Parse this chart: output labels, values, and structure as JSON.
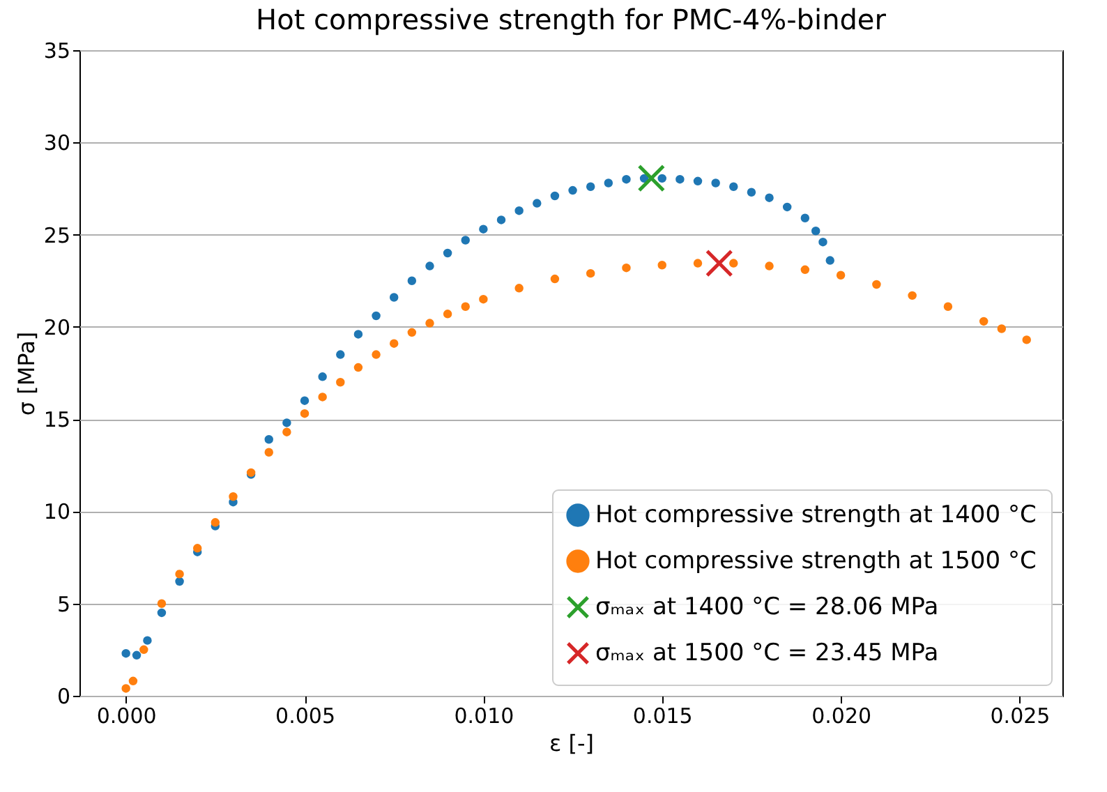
{
  "chart_data": {
    "type": "scatter",
    "title": "Hot compressive strength for PMC-4%-binder",
    "xlabel": "ε [-]",
    "ylabel": "σ [MPa]",
    "xlim": [
      -0.0013,
      0.0262
    ],
    "ylim": [
      0,
      35
    ],
    "xticks": [
      {
        "value": 0,
        "label": "0.000"
      },
      {
        "value": 0.005,
        "label": "0.005"
      },
      {
        "value": 0.01,
        "label": "0.010"
      },
      {
        "value": 0.015,
        "label": "0.015"
      },
      {
        "value": 0.02,
        "label": "0.020"
      },
      {
        "value": 0.025,
        "label": "0.025"
      }
    ],
    "yticks": [
      0,
      5,
      10,
      15,
      20,
      25,
      30,
      35
    ],
    "grid": "y",
    "legend": "bottom right",
    "series": [
      {
        "name": "Hot compressive strength at 1400 °C",
        "color": "#1f77b4",
        "marker": "circle",
        "x": [
          0,
          0.0003,
          0.0006,
          0.001,
          0.0015,
          0.002,
          0.0025,
          0.003,
          0.0035,
          0.004,
          0.0045,
          0.005,
          0.0055,
          0.006,
          0.0065,
          0.007,
          0.0075,
          0.008,
          0.0085,
          0.009,
          0.0095,
          0.01,
          0.0105,
          0.011,
          0.0115,
          0.012,
          0.0125,
          0.013,
          0.0135,
          0.014,
          0.0145,
          0.015,
          0.0155,
          0.016,
          0.0165,
          0.017,
          0.0175,
          0.018,
          0.0185,
          0.019,
          0.0193,
          0.0195,
          0.0197
        ],
        "values": [
          2.3,
          2.2,
          3,
          4.5,
          6.2,
          7.8,
          9.2,
          10.5,
          12,
          13.9,
          14.8,
          16,
          17.3,
          18.5,
          19.6,
          20.6,
          21.6,
          22.5,
          23.3,
          24,
          24.7,
          25.3,
          25.8,
          26.3,
          26.7,
          27.1,
          27.4,
          27.6,
          27.8,
          28,
          28.05,
          28.05,
          28,
          27.9,
          27.8,
          27.6,
          27.3,
          27,
          26.5,
          25.9,
          25.2,
          24.6,
          23.6
        ]
      },
      {
        "name": "Hot compressive strength at 1500 °C",
        "color": "#ff7f0e",
        "marker": "circle",
        "x": [
          0,
          0.0002,
          0.0005,
          0.001,
          0.0015,
          0.002,
          0.0025,
          0.003,
          0.0035,
          0.004,
          0.0045,
          0.005,
          0.0055,
          0.006,
          0.0065,
          0.007,
          0.0075,
          0.008,
          0.0085,
          0.009,
          0.0095,
          0.01,
          0.011,
          0.012,
          0.013,
          0.014,
          0.015,
          0.016,
          0.017,
          0.018,
          0.019,
          0.02,
          0.021,
          0.022,
          0.023,
          0.024,
          0.0245,
          0.0252
        ],
        "values": [
          0.4,
          0.8,
          2.5,
          5,
          6.6,
          8,
          9.4,
          10.8,
          12.1,
          13.2,
          14.3,
          15.3,
          16.2,
          17,
          17.8,
          18.5,
          19.1,
          19.7,
          20.2,
          20.7,
          21.1,
          21.5,
          22.1,
          22.6,
          22.9,
          23.2,
          23.35,
          23.45,
          23.45,
          23.3,
          23.1,
          22.8,
          22.3,
          21.7,
          21.1,
          20.3,
          19.9,
          19.3
        ]
      },
      {
        "name": "σₘₐₓ at 1400 °C = 28.06 MPa",
        "color": "#2ca02c",
        "marker": "cross",
        "x": [
          0.0147
        ],
        "values": [
          28.06
        ]
      },
      {
        "name": "σₘₐₓ at 1500 °C = 23.45 MPa",
        "color": "#d62728",
        "marker": "cross",
        "x": [
          0.0166
        ],
        "values": [
          23.45
        ]
      }
    ]
  }
}
